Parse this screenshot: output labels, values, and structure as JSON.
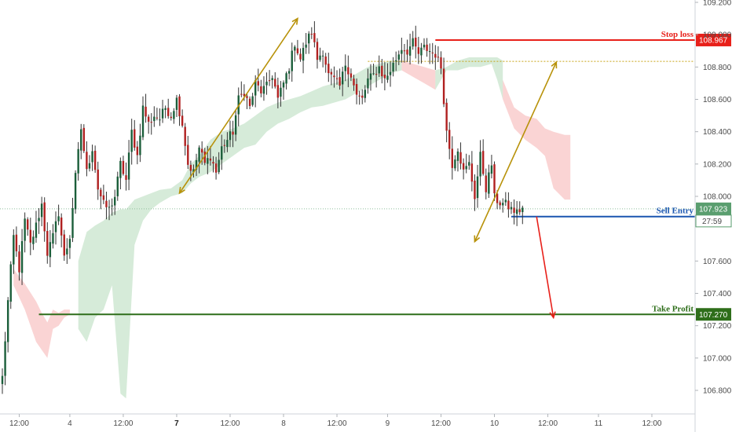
{
  "chart_data": {
    "type": "candlestick",
    "title": "",
    "xlabel": "",
    "ylabel": "",
    "ylim": [
      106.68,
      109.22
    ],
    "y_ticks": [
      "109.200",
      "109.000",
      "108.800",
      "108.600",
      "108.400",
      "108.200",
      "108.000",
      "107.600",
      "107.400",
      "107.200",
      "107.000",
      "106.800"
    ],
    "x_ticks": [
      {
        "label": "12:00",
        "bar": 6,
        "bold": false
      },
      {
        "label": "4",
        "bar": 24,
        "bold": false
      },
      {
        "label": "12:00",
        "bar": 43,
        "bold": false
      },
      {
        "label": "7",
        "bar": 62,
        "bold": true
      },
      {
        "label": "12:00",
        "bar": 81,
        "bold": false
      },
      {
        "label": "8",
        "bar": 100,
        "bold": false
      },
      {
        "label": "12:00",
        "bar": 119,
        "bold": false
      },
      {
        "label": "9",
        "bar": 137,
        "bold": false
      },
      {
        "label": "12:00",
        "bar": 156,
        "bold": false
      },
      {
        "label": "10",
        "bar": 175,
        "bold": false
      },
      {
        "label": "12:00",
        "bar": 194,
        "bold": false
      },
      {
        "label": "11",
        "bar": 212,
        "bold": false
      },
      {
        "label": "12:00",
        "bar": 231,
        "bold": false
      }
    ],
    "close_anchors": [
      [
        0,
        106.88
      ],
      [
        2,
        107.35
      ],
      [
        4,
        107.75
      ],
      [
        6,
        107.55
      ],
      [
        8,
        107.85
      ],
      [
        10,
        107.7
      ],
      [
        12,
        107.82
      ],
      [
        14,
        107.95
      ],
      [
        16,
        107.65
      ],
      [
        18,
        107.75
      ],
      [
        20,
        107.9
      ],
      [
        22,
        107.62
      ],
      [
        24,
        107.75
      ],
      [
        26,
        108.12
      ],
      [
        28,
        108.42
      ],
      [
        30,
        108.15
      ],
      [
        32,
        108.3
      ],
      [
        34,
        108.05
      ],
      [
        36,
        107.95
      ],
      [
        38,
        107.92
      ],
      [
        40,
        108.0
      ],
      [
        42,
        108.2
      ],
      [
        44,
        108.1
      ],
      [
        46,
        108.4
      ],
      [
        48,
        108.25
      ],
      [
        50,
        108.55
      ],
      [
        52,
        108.45
      ],
      [
        54,
        108.5
      ],
      [
        56,
        108.48
      ],
      [
        58,
        108.55
      ],
      [
        60,
        108.5
      ],
      [
        62,
        108.6
      ],
      [
        64,
        108.45
      ],
      [
        66,
        108.2
      ],
      [
        68,
        108.15
      ],
      [
        70,
        108.3
      ],
      [
        72,
        108.2
      ],
      [
        74,
        108.25
      ],
      [
        76,
        108.15
      ],
      [
        78,
        108.3
      ],
      [
        80,
        108.35
      ],
      [
        82,
        108.4
      ],
      [
        84,
        108.6
      ],
      [
        86,
        108.65
      ],
      [
        88,
        108.55
      ],
      [
        90,
        108.7
      ],
      [
        92,
        108.65
      ],
      [
        94,
        108.68
      ],
      [
        96,
        108.75
      ],
      [
        98,
        108.6
      ],
      [
        100,
        108.7
      ],
      [
        102,
        108.8
      ],
      [
        104,
        108.95
      ],
      [
        106,
        108.85
      ],
      [
        108,
        108.95
      ],
      [
        110,
        109.02
      ],
      [
        112,
        108.85
      ],
      [
        114,
        108.9
      ],
      [
        116,
        108.75
      ],
      [
        118,
        108.72
      ],
      [
        120,
        108.68
      ],
      [
        122,
        108.82
      ],
      [
        124,
        108.75
      ],
      [
        126,
        108.62
      ],
      [
        128,
        108.6
      ],
      [
        130,
        108.72
      ],
      [
        132,
        108.75
      ],
      [
        134,
        108.8
      ],
      [
        136,
        108.72
      ],
      [
        138,
        108.78
      ],
      [
        140,
        108.85
      ],
      [
        142,
        108.92
      ],
      [
        144,
        108.9
      ],
      [
        146,
        108.95
      ],
      [
        148,
        108.88
      ],
      [
        150,
        108.92
      ],
      [
        152,
        108.9
      ],
      [
        154,
        108.88
      ],
      [
        156,
        108.8
      ],
      [
        158,
        108.4
      ],
      [
        160,
        108.2
      ],
      [
        162,
        108.3
      ],
      [
        164,
        108.15
      ],
      [
        166,
        108.2
      ],
      [
        168,
        108.0
      ],
      [
        170,
        108.25
      ],
      [
        172,
        108.05
      ],
      [
        174,
        108.2
      ],
      [
        175,
        107.99
      ],
      [
        177,
        107.96
      ],
      [
        179,
        107.95
      ],
      [
        181,
        107.92
      ],
      [
        183,
        107.9
      ],
      [
        185,
        107.93
      ]
    ],
    "cloud_segments": [
      {
        "color": "green",
        "points": [
          [
            27,
            107.18,
            107.6
          ],
          [
            30,
            107.1,
            107.78
          ],
          [
            33,
            107.25,
            107.82
          ],
          [
            36,
            107.3,
            107.85
          ],
          [
            39,
            107.45,
            107.9
          ],
          [
            42,
            106.78,
            107.92
          ],
          [
            44,
            106.75,
            107.92
          ],
          [
            47,
            107.7,
            107.98
          ],
          [
            50,
            107.85,
            108.0
          ],
          [
            53,
            107.92,
            108.02
          ],
          [
            56,
            107.96,
            108.04
          ],
          [
            60,
            108.0,
            108.05
          ],
          [
            64,
            108.02,
            108.1
          ],
          [
            67,
            108.08,
            108.2
          ],
          [
            70,
            108.12,
            108.25
          ],
          [
            74,
            108.15,
            108.35
          ],
          [
            78,
            108.2,
            108.4
          ],
          [
            82,
            108.25,
            108.42
          ],
          [
            86,
            108.3,
            108.45
          ],
          [
            90,
            108.32,
            108.5
          ],
          [
            94,
            108.4,
            108.55
          ],
          [
            98,
            108.45,
            108.58
          ],
          [
            102,
            108.48,
            108.6
          ],
          [
            106,
            108.52,
            108.62
          ],
          [
            110,
            108.55,
            108.65
          ],
          [
            114,
            108.56,
            108.68
          ],
          [
            118,
            108.58,
            108.7
          ],
          [
            122,
            108.6,
            108.72
          ],
          [
            126,
            108.64,
            108.76
          ],
          [
            130,
            108.68,
            108.8
          ],
          [
            134,
            108.72,
            108.82
          ],
          [
            138,
            108.76,
            108.84
          ],
          [
            142,
            108.78,
            108.84
          ]
        ]
      },
      {
        "color": "red",
        "points": [
          [
            142,
            108.78,
            108.84
          ],
          [
            146,
            108.74,
            108.82
          ],
          [
            150,
            108.7,
            108.8
          ],
          [
            154,
            108.66,
            108.78
          ]
        ]
      },
      {
        "color": "green",
        "points": [
          [
            154,
            108.66,
            108.78
          ],
          [
            158,
            108.78,
            108.8
          ],
          [
            162,
            108.78,
            108.84
          ],
          [
            166,
            108.8,
            108.86
          ],
          [
            170,
            108.8,
            108.86
          ],
          [
            174,
            108.82,
            108.86
          ],
          [
            176,
            108.72,
            108.86
          ],
          [
            178,
            108.6,
            108.84
          ]
        ]
      },
      {
        "color": "red",
        "points": [
          [
            178,
            108.6,
            108.72
          ],
          [
            182,
            108.42,
            108.55
          ],
          [
            186,
            108.35,
            108.5
          ],
          [
            190,
            108.3,
            108.48
          ],
          [
            193,
            108.25,
            108.42
          ],
          [
            196,
            108.05,
            108.4
          ],
          [
            200,
            107.98,
            108.38
          ],
          [
            202,
            107.98,
            108.38
          ]
        ]
      },
      {
        "color": "red",
        "points": [
          [
            4,
            107.45,
            107.55
          ],
          [
            8,
            107.3,
            107.46
          ],
          [
            12,
            107.1,
            107.35
          ],
          [
            14,
            107.05,
            107.28
          ],
          [
            16,
            107.0,
            107.22
          ],
          [
            18,
            107.18,
            107.3
          ],
          [
            20,
            107.2,
            107.28
          ],
          [
            22,
            107.25,
            107.3
          ],
          [
            24,
            107.27,
            107.3
          ]
        ]
      }
    ],
    "annotations": [
      {
        "label": "Stop loss",
        "price": 108.967,
        "tag": "108.967",
        "color": "#e8201a",
        "from_bar": 154
      },
      {
        "label": "Sell Entry",
        "price": 107.875,
        "tag": "107.875",
        "color": "#1a55b0",
        "from_bar": 181
      },
      {
        "label": "Take Profit",
        "price": 107.27,
        "tag": "107.270",
        "color": "#2e6e1a",
        "from_bar": 13
      }
    ],
    "current_price": {
      "price": 107.923,
      "tag": "107.923",
      "countdown": "27:59",
      "color": "#5a9e6f"
    },
    "dotted_level": {
      "price": 108.835,
      "color": "#c8a216",
      "from_bar": 130
    },
    "arrows": [
      {
        "from": [
          63,
          108.02
        ],
        "to": [
          105,
          109.1
        ],
        "color": "#b8920a",
        "double": true
      },
      {
        "from": [
          168,
          107.72
        ],
        "to": [
          197,
          108.83
        ],
        "color": "#b8920a",
        "double": true
      },
      {
        "from": [
          190,
          107.875
        ],
        "to": [
          196,
          107.25
        ],
        "color": "#e8201a",
        "double": false
      }
    ],
    "colors": {
      "up": "#1b5e3a",
      "down": "#b02020",
      "wick": "#333333"
    }
  }
}
